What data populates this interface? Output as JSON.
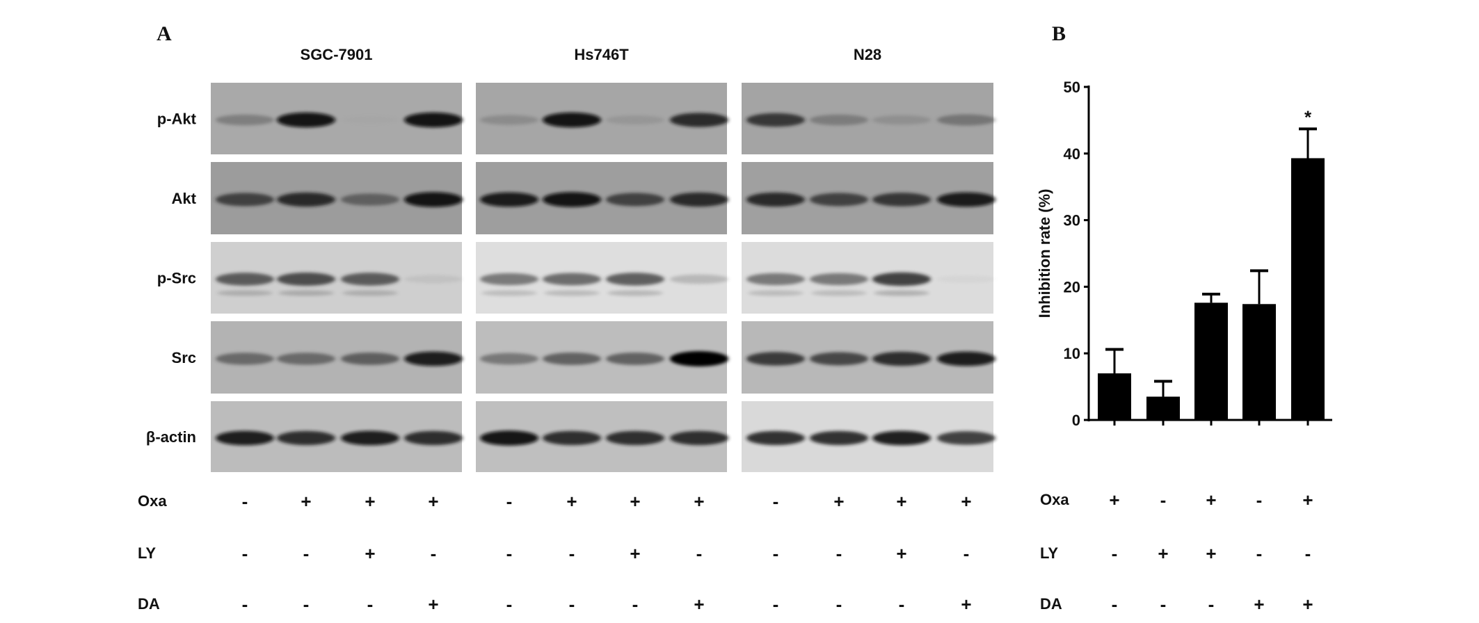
{
  "panel_a": {
    "label": "A",
    "cell_lines": [
      "SGC-7901",
      "Hs746T",
      "N28"
    ],
    "proteins": [
      "p-Akt",
      "Akt",
      "p-Src",
      "Src",
      "β-actin"
    ],
    "treatments": [
      {
        "name": "Oxa",
        "signs": [
          "-",
          "+",
          "+",
          "+"
        ]
      },
      {
        "name": "LY",
        "signs": [
          "-",
          "-",
          "+",
          "-"
        ]
      },
      {
        "name": "DA",
        "signs": [
          "-",
          "-",
          "-",
          "+"
        ]
      }
    ],
    "blot": {
      "background_colors": {
        "p-Akt": [
          "#a9a9a9",
          "#a6a6a6",
          "#a4a4a4"
        ],
        "Akt": [
          "#9c9c9c",
          "#9e9e9e",
          "#a0a0a0"
        ],
        "p-Src": [
          "#cfcfcf",
          "#dedede",
          "#dcdcdc"
        ],
        "Src": [
          "#b3b3b3",
          "#bdbdbd",
          "#b8b8b8"
        ],
        "β-actin": [
          "#bcbcbc",
          "#bfbfbf",
          "#d9d9d9"
        ]
      },
      "band_intensity": {
        "p-Akt": [
          [
            0.45,
            0.95,
            0.05,
            0.95
          ],
          [
            0.35,
            0.95,
            0.25,
            0.85
          ],
          [
            0.8,
            0.45,
            0.3,
            0.5
          ]
        ],
        "Akt": [
          [
            0.75,
            0.85,
            0.6,
            0.95
          ],
          [
            0.9,
            0.95,
            0.75,
            0.85
          ],
          [
            0.85,
            0.75,
            0.8,
            0.9
          ]
        ],
        "p-Src": [
          [
            0.7,
            0.75,
            0.7,
            0.15
          ],
          [
            0.6,
            0.65,
            0.7,
            0.3
          ],
          [
            0.6,
            0.6,
            0.8,
            0.05
          ]
        ],
        "Src": [
          [
            0.6,
            0.6,
            0.65,
            0.9
          ],
          [
            0.55,
            0.65,
            0.65,
            1.0
          ],
          [
            0.8,
            0.75,
            0.85,
            0.9
          ]
        ],
        "β-actin": [
          [
            0.9,
            0.85,
            0.9,
            0.85
          ],
          [
            0.95,
            0.85,
            0.85,
            0.85
          ],
          [
            0.85,
            0.85,
            0.9,
            0.8
          ]
        ]
      }
    }
  },
  "chart_data": {
    "type": "bar",
    "panel_label": "B",
    "ylabel": "Inhibition rate (%)",
    "ylim": [
      0,
      50
    ],
    "yticks": [
      0,
      10,
      20,
      30,
      40,
      50
    ],
    "categories": [
      "Oxa+",
      "LY+",
      "Oxa+LY+",
      "DA+",
      "Oxa+DA+"
    ],
    "values": [
      7.0,
      3.5,
      17.6,
      17.4,
      39.3
    ],
    "error_upper": [
      10.6,
      5.8,
      18.9,
      22.4,
      43.7
    ],
    "bar_color": "#000000",
    "annotations": [
      "",
      "",
      "",
      "",
      "*"
    ],
    "treatments": [
      {
        "name": "Oxa",
        "signs": [
          "+",
          "-",
          "+",
          "-",
          "+"
        ]
      },
      {
        "name": "LY",
        "signs": [
          "-",
          "+",
          "+",
          "-",
          "-"
        ]
      },
      {
        "name": "DA",
        "signs": [
          "-",
          "-",
          "-",
          "+",
          "+"
        ]
      }
    ],
    "grid": false,
    "legend": "none"
  }
}
